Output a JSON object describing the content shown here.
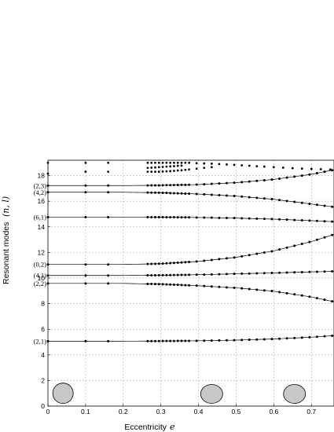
{
  "chart_data": {
    "type": "scatter",
    "xlabel": "Eccentricity",
    "xlabel_var": "e",
    "ylabel": "Resonant modes",
    "ylabel_var": "(n, l)",
    "xlim": [
      0,
      0.76
    ],
    "ylim": [
      0,
      19.2
    ],
    "xticks": [
      "0",
      "0.1",
      "0.2",
      "0.3",
      "0.4",
      "0.5",
      "0.6",
      "0.7"
    ],
    "yticks": [
      "0",
      "2",
      "4",
      "6",
      "8",
      "10",
      "12",
      "14",
      "16",
      "18"
    ],
    "grid": true,
    "series": [
      {
        "name": "(2,1)",
        "curve": [
          [
            0,
            5.07
          ],
          [
            0.2,
            5.07
          ],
          [
            0.3,
            5.08
          ],
          [
            0.4,
            5.1
          ],
          [
            0.5,
            5.15
          ],
          [
            0.6,
            5.24
          ],
          [
            0.7,
            5.38
          ],
          [
            0.76,
            5.5
          ]
        ]
      },
      {
        "name": "(2,2)",
        "curve": [
          [
            0,
            9.58
          ],
          [
            0.2,
            9.58
          ],
          [
            0.3,
            9.52
          ],
          [
            0.4,
            9.4
          ],
          [
            0.5,
            9.23
          ],
          [
            0.6,
            8.97
          ],
          [
            0.7,
            8.52
          ],
          [
            0.76,
            8.15
          ]
        ]
      },
      {
        "name": "(4,1)",
        "curve": [
          [
            0,
            10.2
          ],
          [
            0.2,
            10.2
          ],
          [
            0.3,
            10.22
          ],
          [
            0.4,
            10.26
          ],
          [
            0.5,
            10.33
          ],
          [
            0.6,
            10.4
          ],
          [
            0.7,
            10.48
          ],
          [
            0.76,
            10.52
          ]
        ]
      },
      {
        "name": "(0,2)",
        "curve": [
          [
            0,
            11.06
          ],
          [
            0.2,
            11.06
          ],
          [
            0.3,
            11.12
          ],
          [
            0.4,
            11.3
          ],
          [
            0.5,
            11.62
          ],
          [
            0.6,
            12.12
          ],
          [
            0.7,
            12.85
          ],
          [
            0.76,
            13.4
          ]
        ]
      },
      {
        "name": "(6,1)",
        "curve": [
          [
            0,
            14.75
          ],
          [
            0.2,
            14.75
          ],
          [
            0.3,
            14.75
          ],
          [
            0.4,
            14.73
          ],
          [
            0.5,
            14.68
          ],
          [
            0.6,
            14.6
          ],
          [
            0.7,
            14.48
          ],
          [
            0.76,
            14.4
          ]
        ]
      },
      {
        "name": "(4,2)",
        "curve": [
          [
            0,
            16.7
          ],
          [
            0.2,
            16.7
          ],
          [
            0.3,
            16.66
          ],
          [
            0.4,
            16.56
          ],
          [
            0.5,
            16.4
          ],
          [
            0.6,
            16.15
          ],
          [
            0.7,
            15.78
          ],
          [
            0.76,
            15.55
          ]
        ]
      },
      {
        "name": "(2,3)",
        "curve": [
          [
            0,
            17.22
          ],
          [
            0.2,
            17.22
          ],
          [
            0.3,
            17.24
          ],
          [
            0.4,
            17.3
          ],
          [
            0.5,
            17.45
          ],
          [
            0.6,
            17.7
          ],
          [
            0.7,
            18.1
          ],
          [
            0.76,
            18.45
          ]
        ]
      }
    ],
    "scatter_x": [
      0,
      0.1,
      0.16,
      0.265,
      0.275,
      0.285,
      0.295,
      0.305,
      0.315,
      0.325,
      0.335,
      0.345,
      0.355,
      0.365,
      0.375,
      0.395,
      0.415,
      0.435,
      0.455,
      0.475,
      0.495,
      0.515,
      0.535,
      0.555,
      0.575,
      0.595,
      0.615,
      0.635,
      0.655,
      0.675,
      0.695,
      0.715,
      0.735,
      0.755
    ],
    "upper_points": [
      [
        0,
        19.0
      ],
      [
        0,
        18.15
      ],
      [
        0.1,
        19.0
      ],
      [
        0.1,
        18.3
      ],
      [
        0.16,
        19.0
      ],
      [
        0.16,
        18.3
      ],
      [
        0.265,
        19.0
      ],
      [
        0.275,
        19.0
      ],
      [
        0.285,
        19.0
      ],
      [
        0.295,
        19.0
      ],
      [
        0.305,
        19.0
      ],
      [
        0.315,
        19.0
      ],
      [
        0.325,
        19.0
      ],
      [
        0.335,
        19.0
      ],
      [
        0.345,
        19.0
      ],
      [
        0.355,
        19.0
      ],
      [
        0.365,
        19.0
      ],
      [
        0.375,
        19.0
      ],
      [
        0.395,
        18.97
      ],
      [
        0.415,
        18.95
      ],
      [
        0.435,
        18.93
      ],
      [
        0.455,
        18.9
      ],
      [
        0.475,
        18.87
      ],
      [
        0.495,
        18.84
      ],
      [
        0.515,
        18.8
      ],
      [
        0.535,
        18.77
      ],
      [
        0.555,
        18.73
      ],
      [
        0.575,
        18.7
      ],
      [
        0.6,
        18.66
      ],
      [
        0.625,
        18.62
      ],
      [
        0.65,
        18.58
      ],
      [
        0.675,
        18.55
      ],
      [
        0.7,
        18.52
      ],
      [
        0.725,
        18.5
      ],
      [
        0.75,
        18.48
      ],
      [
        0.265,
        18.3
      ],
      [
        0.275,
        18.3
      ],
      [
        0.285,
        18.3
      ],
      [
        0.295,
        18.3
      ],
      [
        0.305,
        18.32
      ],
      [
        0.315,
        18.33
      ],
      [
        0.325,
        18.35
      ],
      [
        0.335,
        18.37
      ],
      [
        0.345,
        18.4
      ],
      [
        0.355,
        18.42
      ],
      [
        0.365,
        18.45
      ],
      [
        0.375,
        18.48
      ],
      [
        0.395,
        18.54
      ],
      [
        0.415,
        18.6
      ],
      [
        0.435,
        18.66
      ],
      [
        0.265,
        18.6
      ],
      [
        0.275,
        18.62
      ],
      [
        0.285,
        18.64
      ],
      [
        0.295,
        18.66
      ],
      [
        0.305,
        18.68
      ],
      [
        0.315,
        18.7
      ],
      [
        0.325,
        18.72
      ],
      [
        0.335,
        18.74
      ],
      [
        0.345,
        18.76
      ],
      [
        0.355,
        18.78
      ]
    ],
    "illustrations": [
      {
        "e": 0.04,
        "y": 1.0,
        "shape": "near-circle"
      },
      {
        "e": 0.435,
        "y": 0.95,
        "shape": "ellipse"
      },
      {
        "e": 0.655,
        "y": 0.95,
        "shape": "ellipse"
      }
    ]
  }
}
